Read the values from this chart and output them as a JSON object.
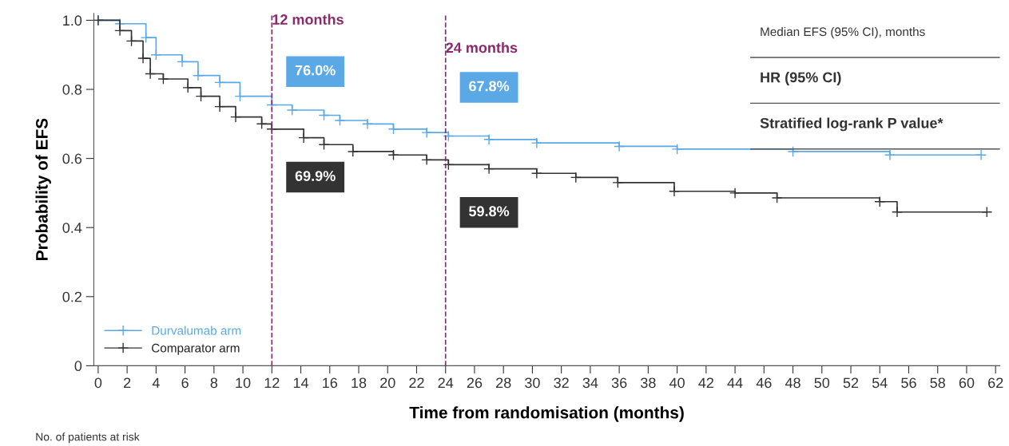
{
  "chart_data": {
    "type": "step",
    "xlabel": "Time from randomisation (months)",
    "ylabel": "Probability of EFS",
    "series": [
      {
        "name": "Durvalumab arm",
        "color": "#5aa9e6",
        "x": [
          0,
          1.5,
          3.3,
          4.0,
          5.8,
          6.9,
          8.4,
          9.8,
          12.0,
          13.4,
          15.6,
          16.7,
          18.6,
          20.4,
          22.7,
          24.2,
          27,
          30.3,
          36,
          40,
          48,
          54.7,
          61
        ],
        "values": [
          1.0,
          0.99,
          0.95,
          0.9,
          0.88,
          0.84,
          0.82,
          0.78,
          0.755,
          0.74,
          0.725,
          0.71,
          0.7,
          0.685,
          0.675,
          0.665,
          0.655,
          0.645,
          0.635,
          0.627,
          0.62,
          0.61,
          0.61
        ]
      },
      {
        "name": "Comparator arm",
        "color": "#333333",
        "x": [
          0,
          1.5,
          2.3,
          3.1,
          3.6,
          4.5,
          6.2,
          7.1,
          8.4,
          9.5,
          11.3,
          12.0,
          14.2,
          15.6,
          17.6,
          20.4,
          22.7,
          24.2,
          27,
          30.3,
          33,
          35.9,
          39.8,
          44,
          46.9,
          54,
          55.2,
          61.4
        ],
        "values": [
          1.0,
          0.97,
          0.94,
          0.89,
          0.845,
          0.83,
          0.805,
          0.78,
          0.75,
          0.72,
          0.7,
          0.685,
          0.66,
          0.64,
          0.62,
          0.61,
          0.596,
          0.582,
          0.57,
          0.557,
          0.545,
          0.53,
          0.505,
          0.5,
          0.486,
          0.475,
          0.445,
          0.445
        ]
      }
    ],
    "xlim": [
      -0.3,
      62.3
    ],
    "xticks": [
      0,
      2,
      4,
      6,
      8,
      10,
      12,
      14,
      16,
      18,
      20,
      22,
      24,
      26,
      28,
      30,
      32,
      34,
      36,
      38,
      40,
      42,
      44,
      46,
      48,
      50,
      52,
      54,
      56,
      58,
      60,
      62
    ],
    "ylim": [
      0,
      1.02
    ],
    "yticks": [
      0,
      0.2,
      0.4,
      0.6,
      0.8,
      {
        "value": 1.0,
        "label": "1.0"
      }
    ],
    "ref_lines": [
      {
        "axis": "x",
        "value": 12,
        "label": "12 months",
        "color": "#8b2a6b",
        "line_style": "dashed"
      },
      {
        "axis": "x",
        "value": 24,
        "label": "24 months",
        "color": "#8b2a6b",
        "line_style": "dashed"
      }
    ],
    "annotations": [
      "76.0%",
      "69.9%",
      "67.8%",
      "59.8%",
      "Median EFS (95% CI), months",
      "HR (95% CI)",
      "Stratified log-rank P value*",
      "No. of patients at risk"
    ],
    "marker": "cross",
    "line_style": "solid",
    "grid": false,
    "legend": "bottom left"
  }
}
